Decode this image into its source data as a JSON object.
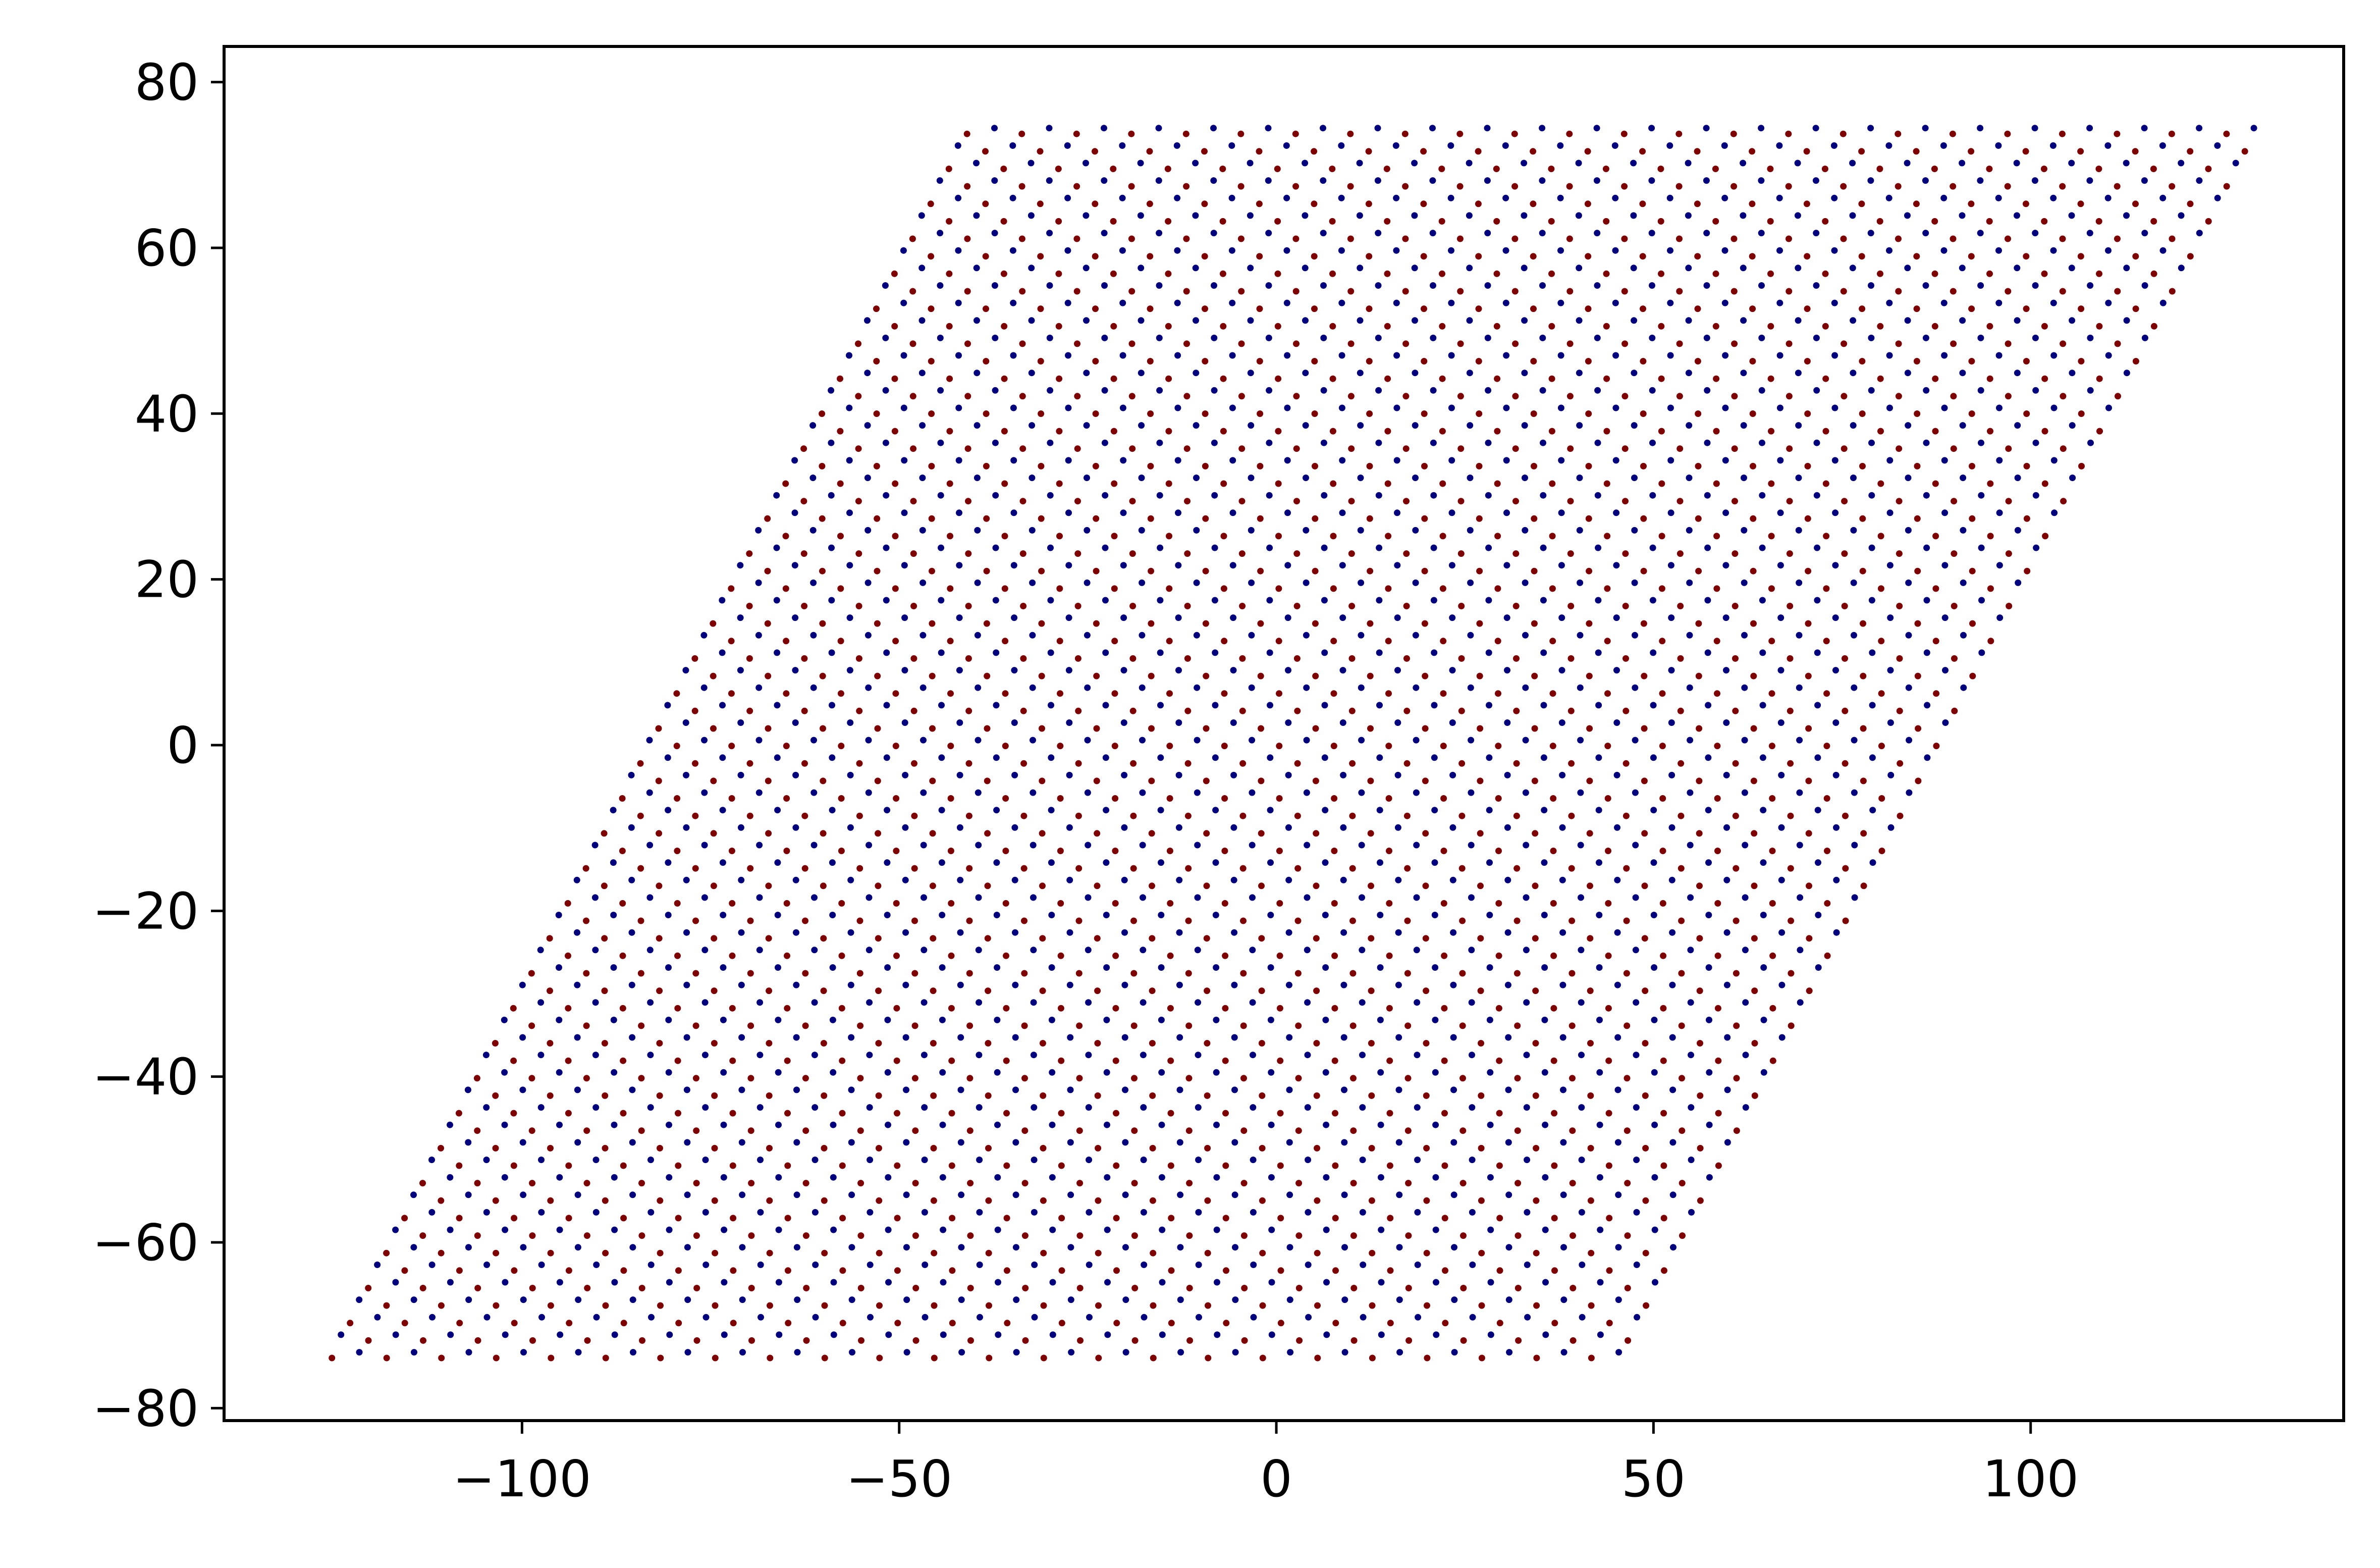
{
  "chart_data": {
    "type": "scatter",
    "title": "",
    "xlabel": "",
    "ylabel": "",
    "xlim": [
      -139.5,
      141.5
    ],
    "ylim": [
      -81.5,
      84.3
    ],
    "grid": false,
    "legend": "none",
    "x_ticks": [
      {
        "value": -100,
        "label": "−100"
      },
      {
        "value": -50,
        "label": "−50"
      },
      {
        "value": 0,
        "label": "0"
      },
      {
        "value": 50,
        "label": "50"
      },
      {
        "value": 100,
        "label": "100"
      }
    ],
    "y_ticks": [
      {
        "value": 80,
        "label": "80"
      },
      {
        "value": 60,
        "label": "60"
      },
      {
        "value": 40,
        "label": "40"
      },
      {
        "value": 20,
        "label": "20"
      },
      {
        "value": 0,
        "label": "0"
      },
      {
        "value": -20,
        "label": "−20"
      },
      {
        "value": -40,
        "label": "−40"
      },
      {
        "value": -60,
        "label": "−60"
      },
      {
        "value": -80,
        "label": "−80"
      }
    ],
    "lattice": {
      "description": "honeycomb lattice filling a parallelogram; two interleaved sublattices",
      "corners": {
        "bottom_left": [
          -125.2,
          -73.6
        ],
        "bottom_right": [
          45.4,
          -73.6
        ],
        "top_left": [
          -41.0,
          74.1
        ],
        "top_right": [
          128.5,
          74.1
        ]
      },
      "lattice_constant": 3.6,
      "rows": 71,
      "sites_per_row": 48
    },
    "series": [
      {
        "color": "#7f0000"
      },
      {
        "color": "#00007f"
      }
    ]
  }
}
